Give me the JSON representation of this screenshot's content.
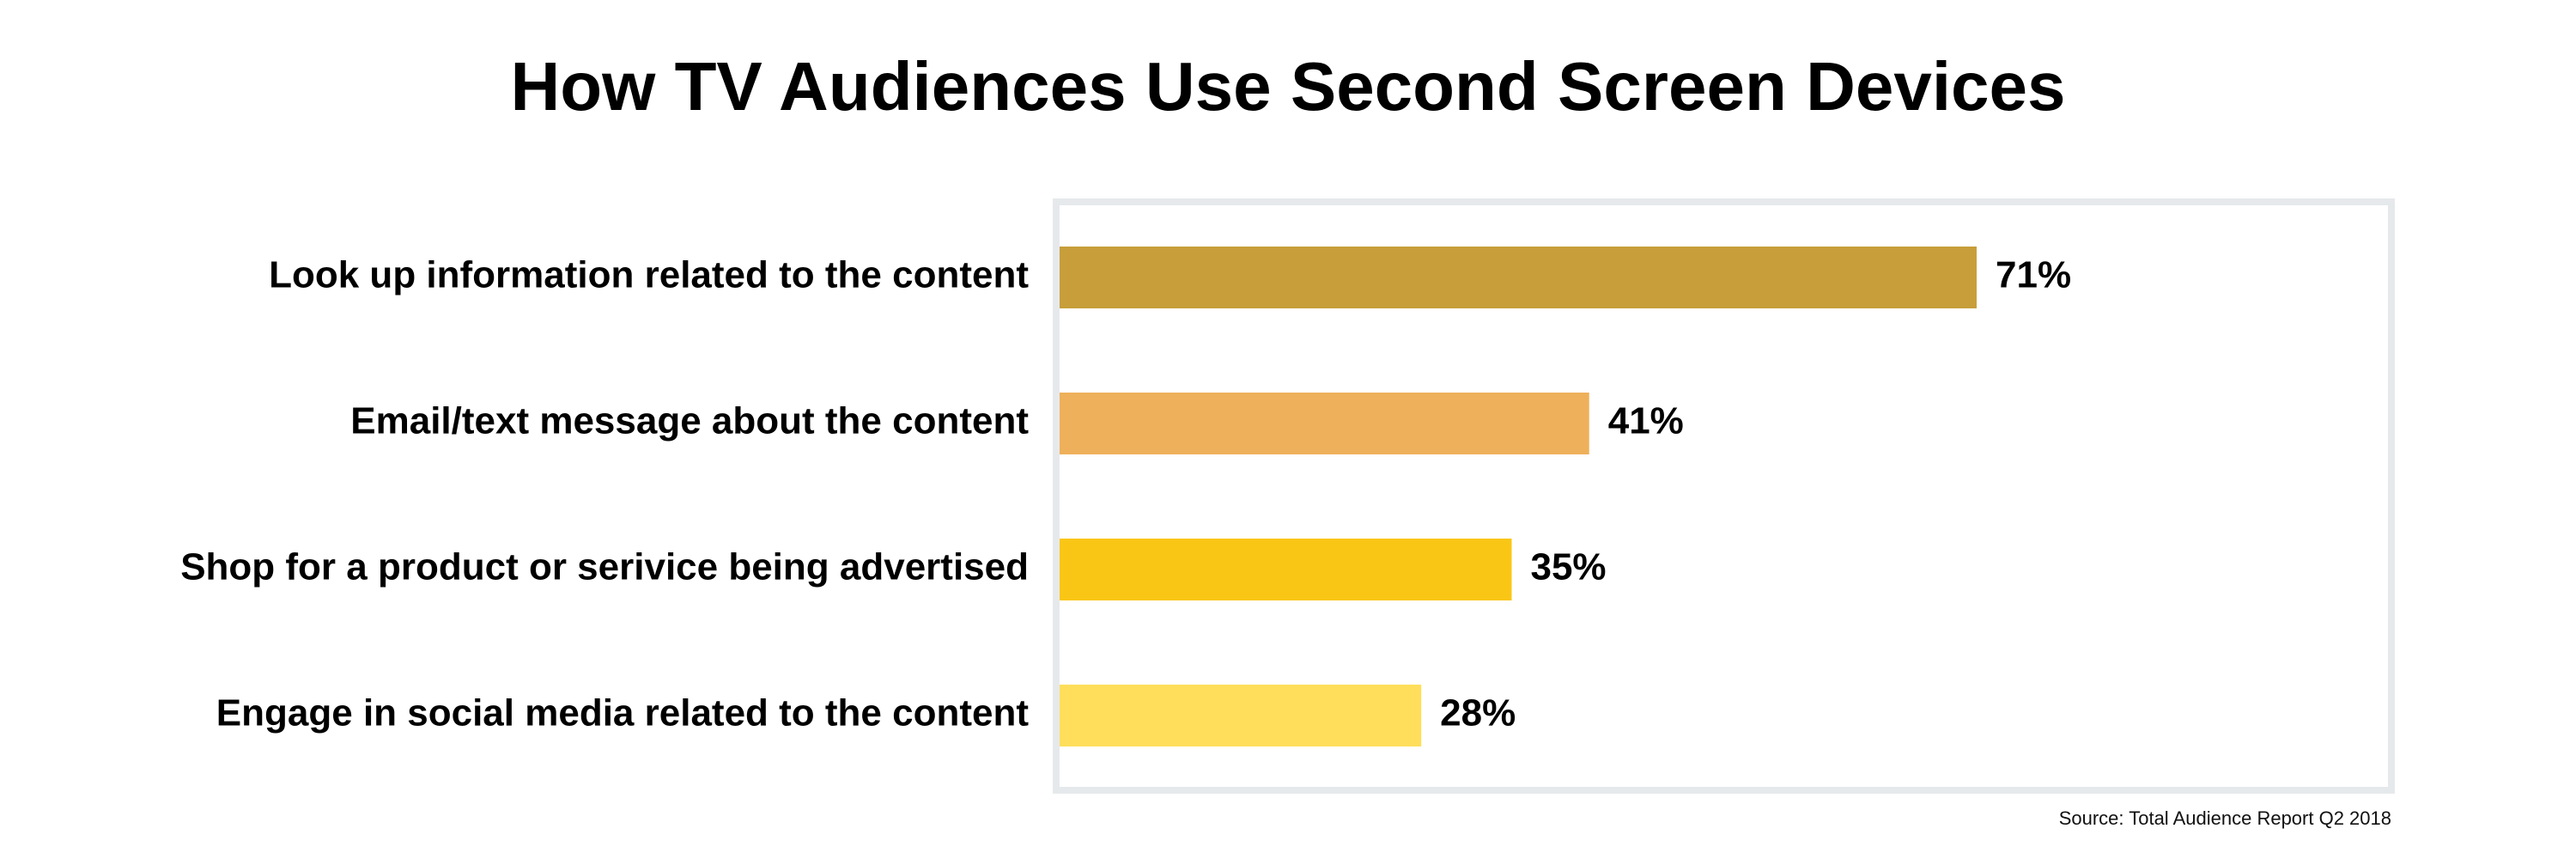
{
  "chart_data": {
    "type": "bar",
    "orientation": "horizontal",
    "title": "How TV Audiences Use Second Screen Devices",
    "categories": [
      "Look up information related to the content",
      "Email/text message about the content",
      "Shop for a product or serivice being advertised",
      "Engage in social media related to the content"
    ],
    "values": [
      71,
      41,
      35,
      28
    ],
    "value_labels": [
      "71%",
      "41%",
      "35%",
      "28%"
    ],
    "colors": [
      "#C79E3A",
      "#EEB05A",
      "#FAC615",
      "#FEDE5B"
    ],
    "xlim": [
      0,
      100
    ],
    "grid": false,
    "legend": "none",
    "source": "Source: Total Audience Report Q2 2018"
  }
}
